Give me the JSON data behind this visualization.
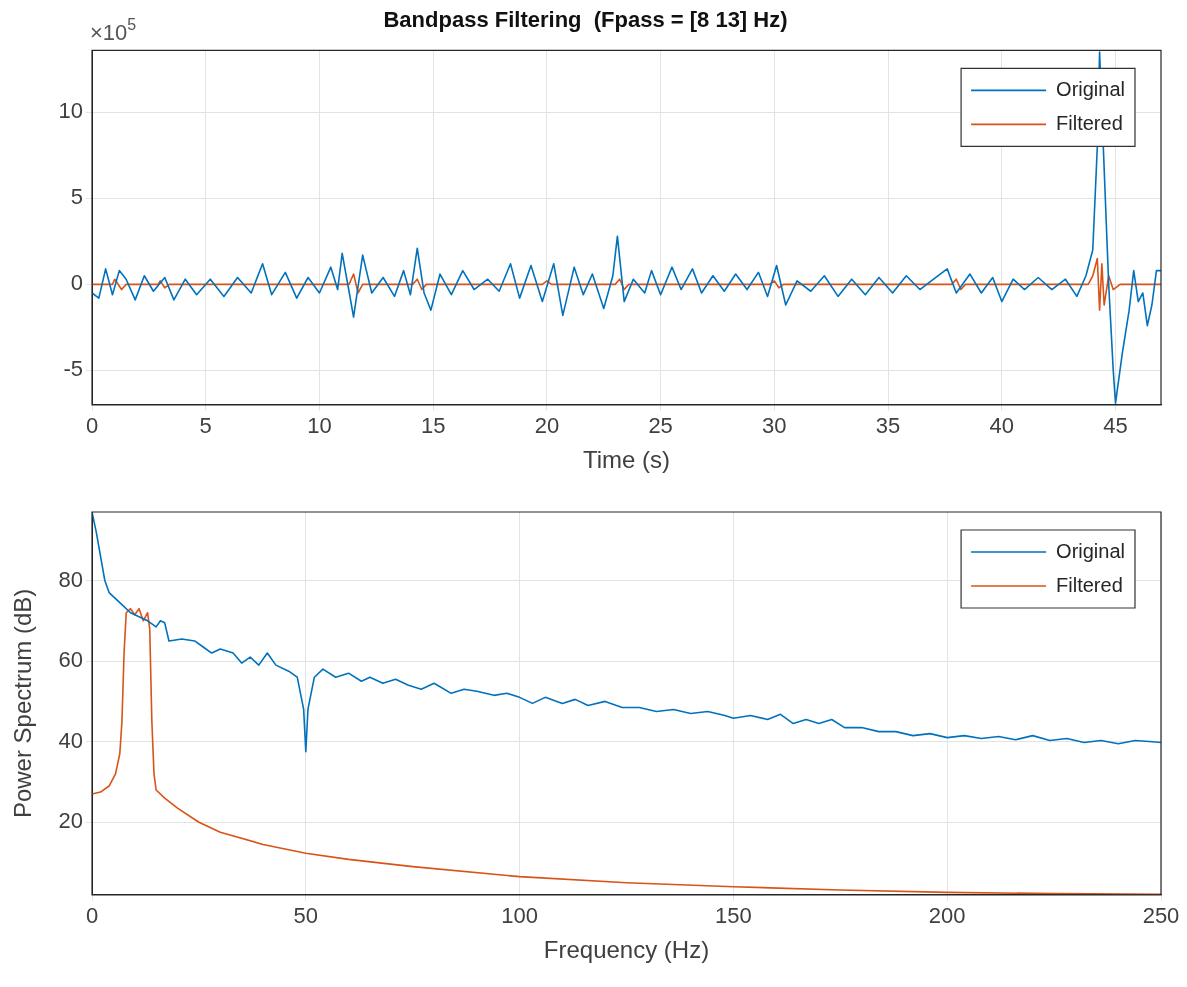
{
  "chart_data": [
    {
      "type": "line",
      "title": "Bandpass Filtering  (Fpass = [8 13] Hz)",
      "xlabel": "Time (s)",
      "annotations": [
        "×10$^{5}$"
      ],
      "xlim": [
        0,
        47
      ],
      "xticks": [
        0,
        5,
        10,
        15,
        20,
        25,
        30,
        35,
        40,
        45
      ],
      "ylim": [
        -7,
        13.6
      ],
      "yticks": [
        -5,
        0,
        5,
        10
      ],
      "grid": true,
      "legend": "top right",
      "marker": "none",
      "line_style": "solid",
      "series": [
        {
          "name": "Original",
          "color": "#0072bd",
          "x": [
            0,
            0.3,
            0.6,
            0.9,
            1.2,
            1.5,
            1.9,
            2.3,
            2.7,
            3.2,
            3.6,
            4.1,
            4.6,
            5.2,
            5.8,
            6.4,
            7.0,
            7.5,
            7.9,
            8.5,
            9.0,
            9.5,
            10.0,
            10.5,
            10.8,
            11.0,
            11.3,
            11.5,
            11.9,
            12.3,
            12.8,
            13.3,
            13.7,
            14.0,
            14.3,
            14.6,
            14.9,
            15.3,
            15.8,
            16.3,
            16.8,
            17.4,
            17.9,
            18.4,
            18.8,
            19.3,
            19.8,
            20.3,
            20.7,
            21.2,
            21.6,
            22.0,
            22.5,
            22.9,
            23.1,
            23.4,
            23.8,
            24.3,
            24.6,
            25.0,
            25.5,
            25.9,
            26.4,
            26.8,
            27.3,
            27.8,
            28.3,
            28.8,
            29.3,
            29.7,
            30.1,
            30.5,
            31.0,
            31.6,
            32.2,
            32.8,
            33.4,
            34.0,
            34.6,
            35.2,
            35.8,
            36.4,
            37.0,
            37.6,
            38.0,
            38.6,
            39.1,
            39.6,
            40.0,
            40.5,
            41.0,
            41.6,
            42.2,
            42.8,
            43.3,
            43.7,
            44.0,
            44.2,
            44.3,
            44.7,
            44.9,
            45.0,
            45.3,
            45.6,
            45.8,
            46.0,
            46.2,
            46.4,
            46.6,
            46.8,
            47
          ],
          "values": [
            -0.5,
            -0.8,
            0.9,
            -0.6,
            0.8,
            0.3,
            -0.9,
            0.5,
            -0.4,
            0.4,
            -0.9,
            0.3,
            -0.6,
            0.3,
            -0.7,
            0.4,
            -0.5,
            1.2,
            -0.6,
            0.7,
            -0.8,
            0.4,
            -0.5,
            1.0,
            -0.3,
            1.8,
            -0.4,
            -1.9,
            1.7,
            -0.5,
            0.4,
            -0.7,
            0.8,
            -0.6,
            2.1,
            -0.5,
            -1.5,
            0.6,
            -0.6,
            0.8,
            -0.3,
            0.3,
            -0.4,
            1.2,
            -0.8,
            1.1,
            -1.0,
            1.2,
            -1.8,
            1.0,
            -0.6,
            0.6,
            -1.4,
            0.5,
            2.8,
            -1.0,
            0.3,
            -0.5,
            0.8,
            -0.6,
            1.0,
            -0.3,
            0.9,
            -0.5,
            0.5,
            -0.4,
            0.6,
            -0.3,
            0.7,
            -0.7,
            1.1,
            -1.2,
            0.2,
            -0.4,
            0.5,
            -0.7,
            0.3,
            -0.6,
            0.4,
            -0.5,
            0.5,
            -0.3,
            0.3,
            0.9,
            -0.5,
            0.6,
            -0.5,
            0.4,
            -1.0,
            0.3,
            -0.3,
            0.4,
            -0.3,
            0.3,
            -0.7,
            0.5,
            2.0,
            8.0,
            13.5,
            0,
            -5.0,
            -6.9,
            -4.0,
            -1.5,
            0.8,
            -1.0,
            -0.5,
            -2.4,
            -1.2,
            0.8,
            0.8
          ]
        },
        {
          "name": "Filtered",
          "color": "#d95319",
          "x": [
            0,
            0.9,
            1.0,
            1.3,
            1.5,
            2.9,
            3.0,
            3.2,
            3.4,
            11.3,
            11.5,
            11.7,
            11.9,
            14.1,
            14.3,
            14.5,
            14.7,
            19.8,
            20.0,
            20.2,
            23.0,
            23.2,
            23.4,
            23.6,
            29.8,
            30.0,
            30.2,
            30.4,
            37.8,
            38.0,
            38.2,
            38.4,
            43.8,
            44.0,
            44.2,
            44.3,
            44.4,
            44.5,
            44.7,
            44.9,
            45.2,
            47
          ],
          "values": [
            0,
            0,
            0.3,
            -0.3,
            0,
            0,
            0.2,
            -0.2,
            0,
            0,
            0.6,
            -0.5,
            0,
            0,
            0.3,
            -0.3,
            0,
            0,
            0.2,
            0,
            0,
            0.3,
            -0.3,
            0,
            0,
            0.2,
            -0.2,
            0,
            0,
            0.3,
            -0.3,
            0,
            0,
            0.5,
            1.5,
            -1.5,
            1.2,
            -1.2,
            0.5,
            -0.3,
            0,
            0
          ]
        }
      ]
    },
    {
      "type": "line",
      "xlabel": "Frequency (Hz)",
      "ylabel": "Power Spectrum (dB)",
      "xlim": [
        0,
        250
      ],
      "xticks": [
        0,
        50,
        100,
        150,
        200,
        250
      ],
      "ylim": [
        2,
        97
      ],
      "yticks": [
        20,
        40,
        60,
        80
      ],
      "grid": true,
      "legend": "top right",
      "marker": "none",
      "line_style": "solid",
      "series": [
        {
          "name": "Original",
          "color": "#0072bd",
          "x": [
            0,
            1,
            2,
            3,
            4,
            5,
            7,
            9,
            11,
            13,
            15,
            16,
            17,
            18,
            21,
            24,
            26,
            28,
            30,
            33,
            35,
            37,
            39,
            41,
            43,
            46,
            48,
            49.5,
            50,
            50.5,
            52,
            54,
            57,
            60,
            63,
            65,
            68,
            71,
            74,
            77,
            80,
            84,
            87,
            90,
            94,
            97,
            100,
            103,
            106,
            110,
            113,
            116,
            120,
            124,
            128,
            132,
            136,
            140,
            144,
            148,
            150,
            154,
            158,
            161,
            164,
            167,
            170,
            173,
            176,
            180,
            184,
            188,
            192,
            196,
            200,
            204,
            208,
            212,
            216,
            220,
            224,
            228,
            232,
            236,
            240,
            244,
            248,
            250
          ],
          "values": [
            97,
            92,
            86,
            80,
            77,
            76,
            74,
            72,
            71,
            70,
            68.5,
            70,
            69.5,
            65,
            65.5,
            65,
            63.5,
            62,
            63,
            62,
            59.5,
            61,
            59,
            62,
            59,
            57.5,
            56,
            48,
            37.5,
            48,
            56,
            58,
            56,
            57,
            55,
            56,
            54.5,
            55.5,
            54,
            53,
            54.5,
            52,
            53,
            52.5,
            51.5,
            52,
            51,
            49.5,
            51,
            49.5,
            50.5,
            49,
            50,
            48.5,
            48.5,
            47.5,
            48,
            47,
            47.5,
            46.5,
            45.8,
            46.5,
            45.5,
            46.8,
            44.5,
            45.5,
            44.5,
            45.5,
            43.5,
            43.5,
            42.5,
            42.5,
            41.5,
            42,
            41,
            41.5,
            40.8,
            41.3,
            40.5,
            41.5,
            40.3,
            40.8,
            39.8,
            40.3,
            39.5,
            40.3,
            40,
            39.8
          ]
        },
        {
          "name": "Filtered",
          "color": "#d95319",
          "x": [
            0,
            2,
            4,
            5.5,
            6.5,
            7,
            7.5,
            8,
            9,
            10,
            11,
            12,
            13,
            13.5,
            14,
            14.5,
            15,
            17,
            20,
            25,
            30,
            40,
            50,
            60,
            75,
            100,
            125,
            150,
            175,
            200,
            225,
            250
          ],
          "values": [
            27,
            27.5,
            29,
            32,
            37,
            45,
            62,
            72,
            73,
            71.5,
            73,
            70,
            72,
            68,
            45,
            32,
            28,
            26,
            23.5,
            20,
            17.5,
            14.5,
            12.3,
            10.8,
            9,
            6.5,
            5,
            4,
            3.2,
            2.6,
            2.3,
            2.1
          ]
        }
      ]
    }
  ]
}
